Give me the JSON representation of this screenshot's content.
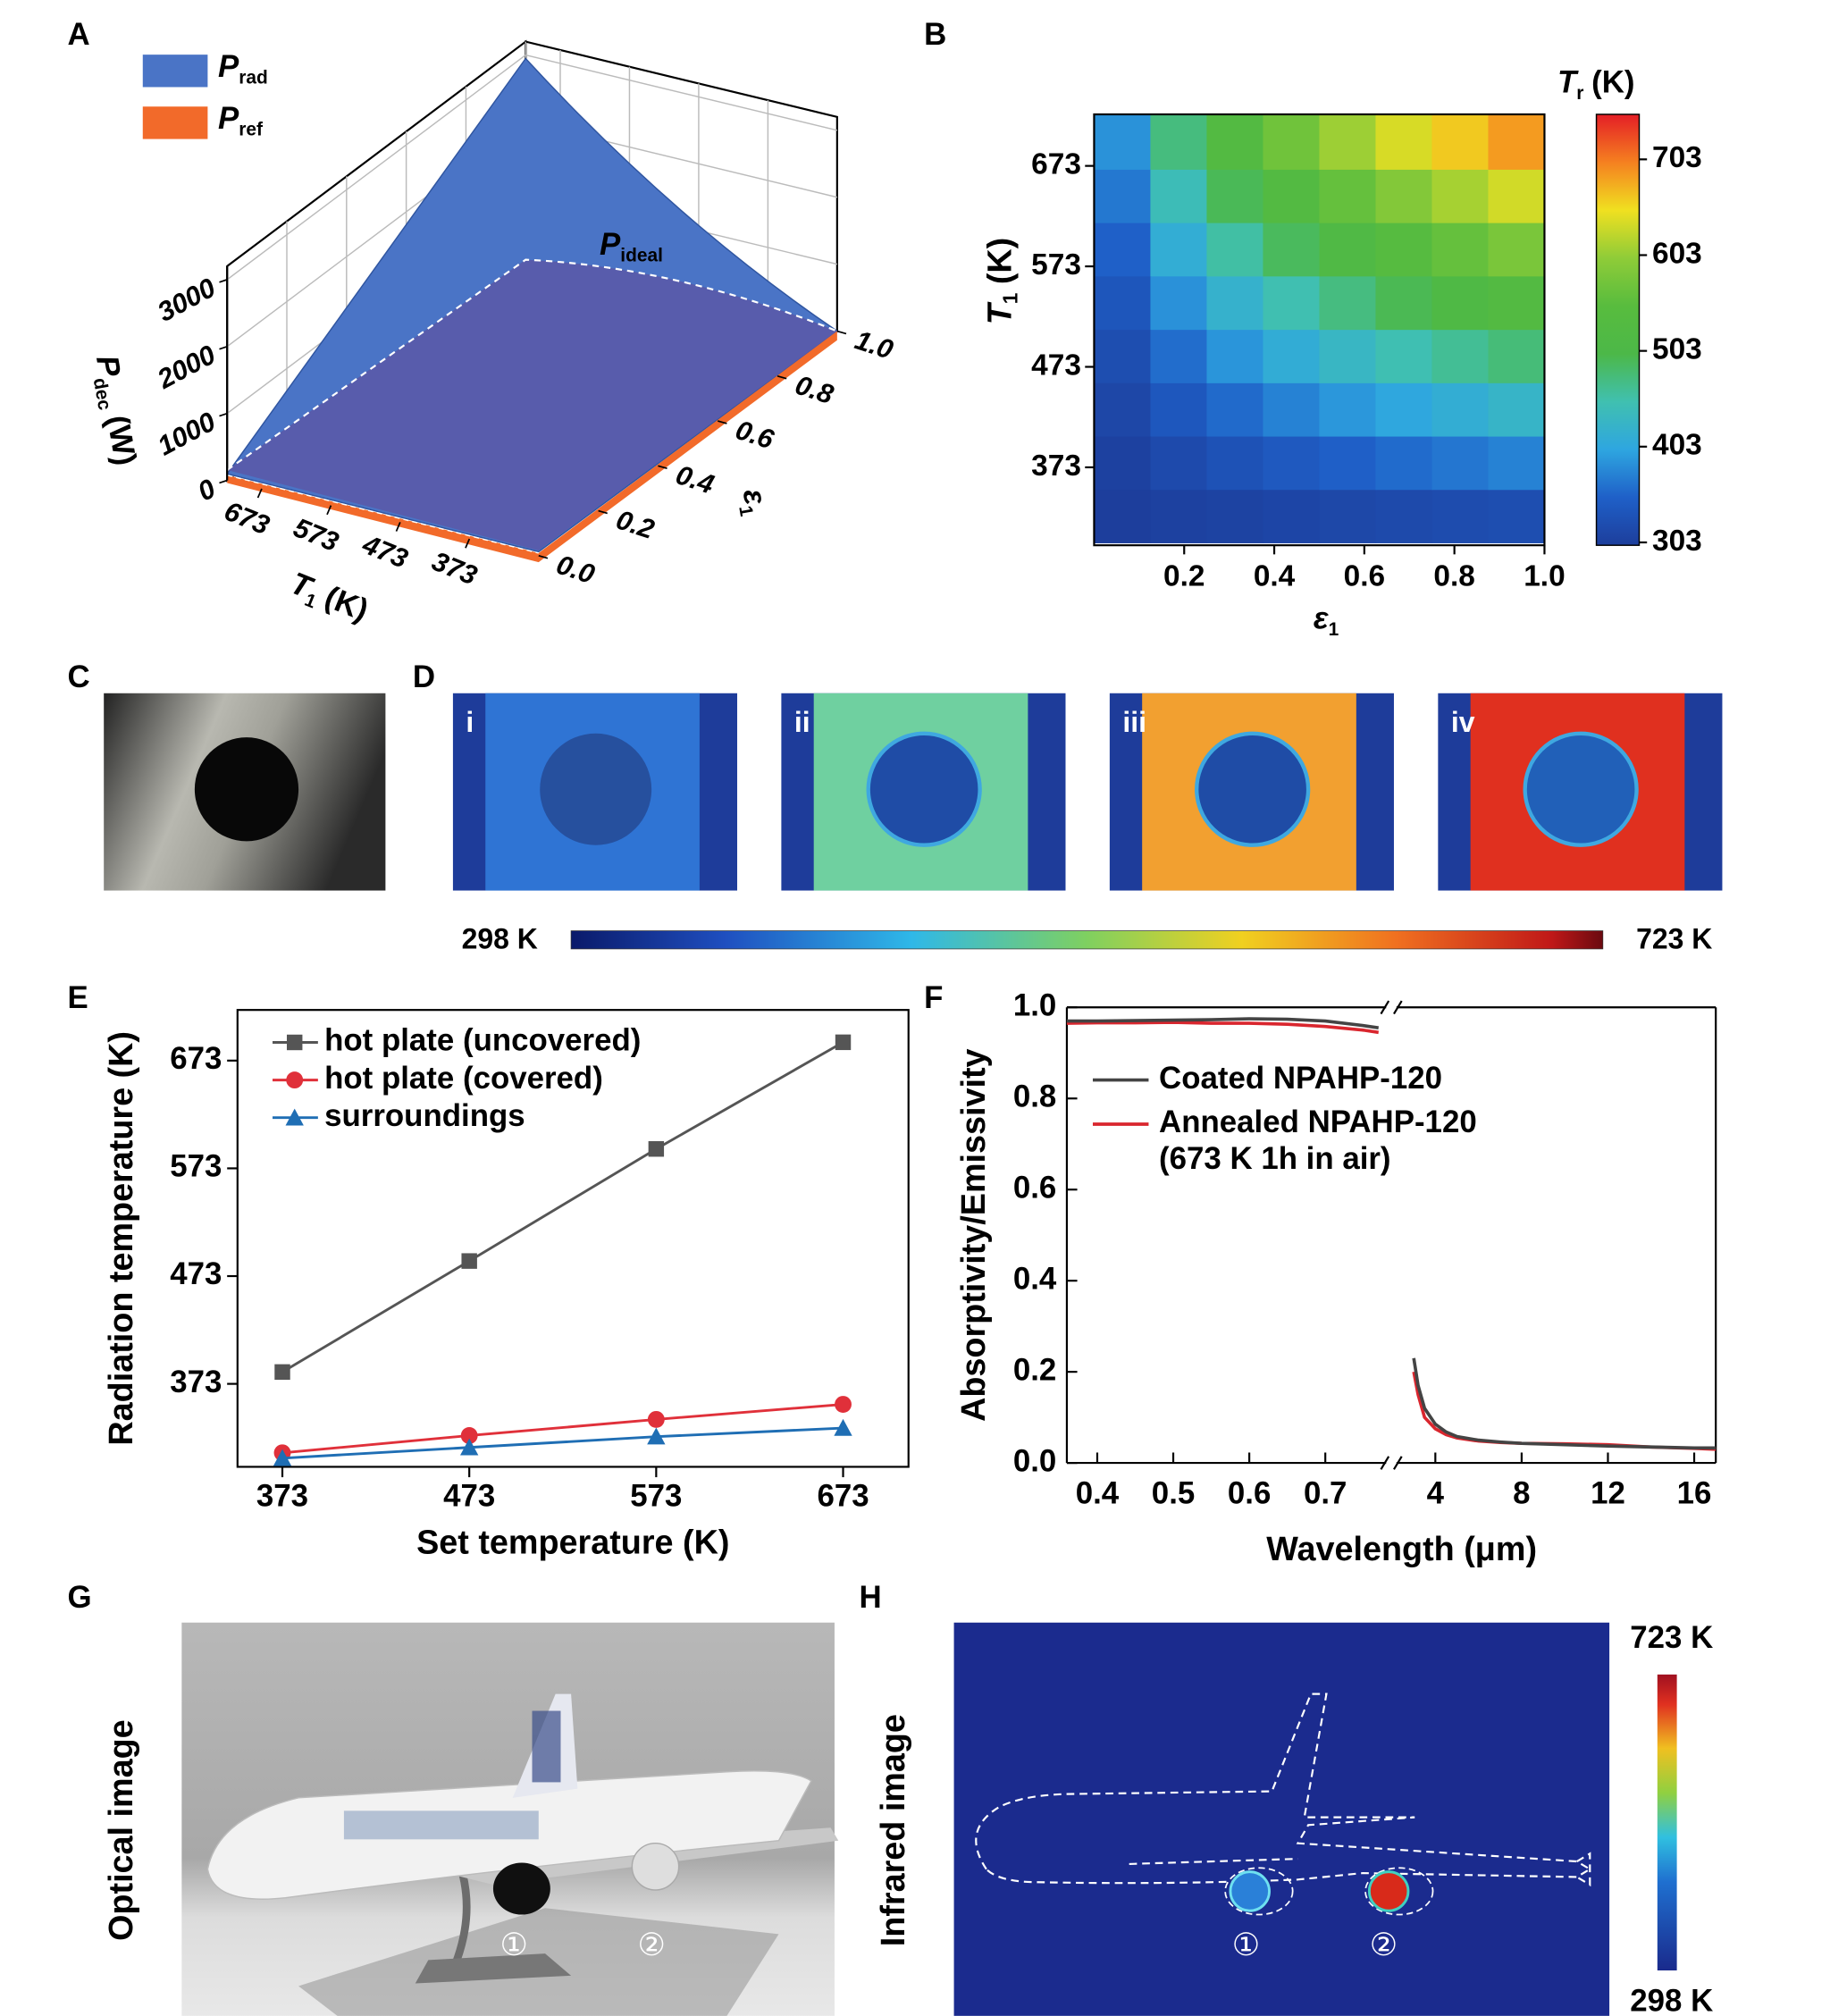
{
  "panel_labels": [
    "A",
    "B",
    "C",
    "D",
    "E",
    "F",
    "G",
    "H"
  ],
  "chart_data": [
    {
      "type": "surface3d",
      "series": [
        {
          "name": "P",
          "subscript": "rad",
          "color": "#4a74c6"
        },
        {
          "name": "P",
          "subscript": "ref",
          "color": "#f26a2a"
        }
      ],
      "annotation": {
        "text": "P",
        "subscript": "ideal"
      },
      "zlabel": {
        "text": "P",
        "subscript": "dec",
        "unit": "(W)"
      },
      "xlabel": {
        "text": "T",
        "subscript": "1",
        "unit": "(K)"
      },
      "ylabel": {
        "text": "ε",
        "subscript": "1"
      },
      "xlim": [
        723,
        273
      ],
      "xticks": [
        673,
        573,
        473,
        373
      ],
      "ylim": [
        0,
        1
      ],
      "yticks": [
        {
          "value": 0,
          "label": "0.0"
        },
        0.2,
        0.4,
        0.6,
        0.8,
        {
          "value": 1,
          "label": "1.0"
        }
      ],
      "zlim": [
        0,
        3200
      ],
      "zticks": [
        0,
        1000,
        2000,
        3000
      ],
      "grid": true
    },
    {
      "type": "heatmap",
      "xlabel": {
        "text": "ε",
        "subscript": "1"
      },
      "ylabel": {
        "text": "T",
        "subscript": "1",
        "unit": "(K)"
      },
      "colorbar_label": {
        "text": "T",
        "subscript": "r",
        "unit": "(K)"
      },
      "x": [
        0.0625,
        0.1875,
        0.3125,
        0.4375,
        0.5625,
        0.6875,
        0.8125,
        0.9375
      ],
      "y": [
        324.6,
        377.7,
        430.8,
        483.9,
        537.0,
        590.2,
        643.3,
        696.4
      ],
      "values": [
        [
          300,
          304,
          307,
          311,
          314,
          317,
          320,
          323
        ],
        [
          305,
          318,
          329,
          340,
          349,
          358,
          366,
          374
        ],
        [
          313,
          337,
          357,
          374,
          389,
          402,
          414,
          426
        ],
        [
          323,
          359,
          388,
          411,
          430,
          448,
          463,
          477
        ],
        [
          335,
          385,
          421,
          449,
          473,
          494,
          513,
          529
        ],
        [
          350,
          413,
          456,
          490,
          517,
          541,
          562,
          581
        ],
        [
          367,
          443,
          493,
          531,
          562,
          589,
          612,
          634
        ],
        [
          386,
          474,
          530,
          572,
          607,
          637,
          662,
          686
        ]
      ],
      "xlim": [
        0,
        1
      ],
      "xticks": [
        0.2,
        0.4,
        0.6,
        0.8,
        {
          "value": 1,
          "label": "1.0"
        }
      ],
      "ylim": [
        298,
        723
      ],
      "yticks": [
        373,
        473,
        573,
        673
      ],
      "clim": [
        300,
        750
      ],
      "cticks": [
        303,
        403,
        503,
        603,
        703
      ],
      "colormap": [
        "#1d3e9c",
        "#1f60c8",
        "#2ea6e0",
        "#40c0b0",
        "#4cb848",
        "#58bc3e",
        "#8fcc38",
        "#f0e020",
        "#f58020",
        "#e41e26"
      ]
    },
    {
      "type": "line",
      "xlabel": "Set temperature (K)",
      "ylabel": "Radiation temperature (K)",
      "x": [
        373,
        473,
        573,
        673
      ],
      "series": [
        {
          "name": "hot plate (uncovered)",
          "color": "#555555",
          "marker": "square",
          "values": [
            384,
            487,
            591,
            690
          ]
        },
        {
          "name": "hot plate (covered)",
          "color": "#e0303a",
          "marker": "circle",
          "values": [
            309,
            325,
            340,
            354
          ]
        },
        {
          "name": "surroundings",
          "color": "#1f6eb4",
          "marker": "triangle",
          "values": [
            304,
            314,
            324,
            332
          ]
        }
      ],
      "xlim": [
        349,
        708
      ],
      "xticks": [
        373,
        473,
        573,
        673
      ],
      "ylim": [
        296,
        720
      ],
      "yticks": [
        373,
        473,
        573,
        673
      ],
      "legend": "upper left"
    },
    {
      "type": "line",
      "xlabel": "Wavelength (μm)",
      "ylabel": "Absorptivity/Emissivity",
      "x": [
        0.36,
        0.4,
        0.45,
        0.5,
        0.55,
        0.6,
        0.65,
        0.7,
        0.75,
        0.77,
        3.0,
        3.2,
        3.5,
        4,
        4.5,
        5,
        6,
        7,
        8,
        10,
        12,
        14,
        16,
        17
      ],
      "series": [
        {
          "name": "Annealed NPAHP-120",
          "color": "#d9262e",
          "values": [
            0.965,
            0.966,
            0.966,
            0.967,
            0.965,
            0.965,
            0.963,
            0.958,
            0.95,
            0.945,
            0.2,
            0.15,
            0.1,
            0.075,
            0.062,
            0.055,
            0.048,
            0.045,
            0.043,
            0.042,
            0.04,
            0.035,
            0.032,
            0.03
          ]
        },
        {
          "name": "Coated NPAHP-120",
          "color": "#444444",
          "values": [
            0.97,
            0.97,
            0.971,
            0.972,
            0.973,
            0.975,
            0.974,
            0.97,
            0.96,
            0.955,
            0.23,
            0.17,
            0.12,
            0.085,
            0.068,
            0.058,
            0.05,
            0.046,
            0.043,
            0.04,
            0.037,
            0.035,
            0.033,
            0.033
          ]
        }
      ],
      "legend_note": "(673 K 1h in air)",
      "xlim": [
        0.36,
        17
      ],
      "xbreak": [
        0.78,
        2.2
      ],
      "xticks": [
        0.4,
        0.5,
        0.6,
        0.7,
        4,
        8,
        12,
        16
      ],
      "ylim": [
        0,
        1
      ],
      "yticks": [
        {
          "value": 0,
          "label": "0.0"
        },
        0.2,
        0.4,
        0.6,
        0.8,
        {
          "value": 1,
          "label": "1.0"
        }
      ]
    }
  ],
  "panel_d": {
    "labels": [
      "i",
      "ii",
      "iii",
      "iv"
    ],
    "colorbar": {
      "min_label": "298 K",
      "max_label": "723 K"
    }
  },
  "panel_g": {
    "label": "Optical image",
    "markers": [
      "①",
      "②"
    ]
  },
  "panel_h": {
    "label": "Infrared image",
    "markers": [
      "①",
      "②"
    ],
    "colorbar": {
      "max_label": "723 K",
      "min_label": "298 K"
    }
  }
}
